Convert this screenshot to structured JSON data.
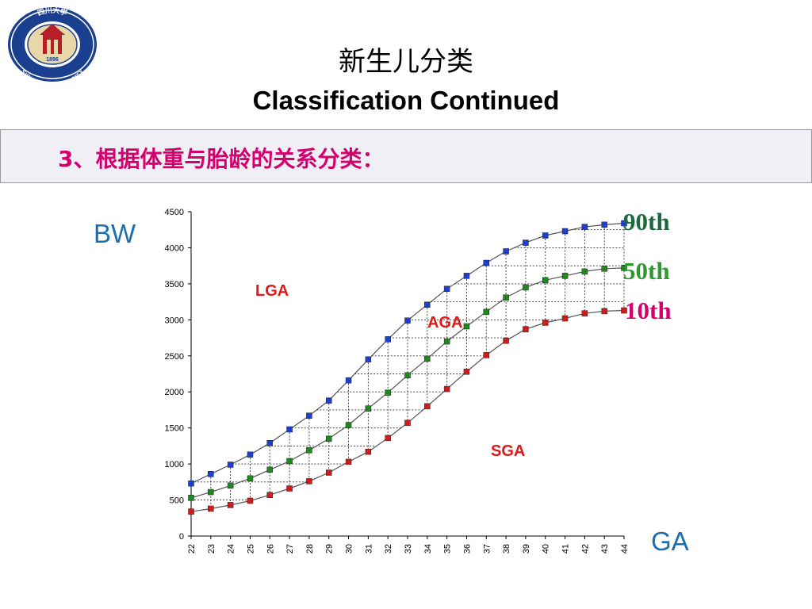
{
  "slide": {
    "title_cn": "新生儿分类",
    "title_en": "Classification Continued",
    "subtitle": "3、根据体重与胎龄的关系分类："
  },
  "logo": {
    "top_text": "四川大学",
    "bottom_text": "SICHUAN UNIVERSITY",
    "year": "1896",
    "color": "#1a3f8f"
  },
  "chart_data": {
    "type": "line",
    "title": "",
    "xlabel": "GA",
    "ylabel": "BW",
    "x": [
      22,
      23,
      24,
      25,
      26,
      27,
      28,
      29,
      30,
      31,
      32,
      33,
      34,
      35,
      36,
      37,
      38,
      39,
      40,
      41,
      42,
      43,
      44
    ],
    "ylim": [
      0,
      4500
    ],
    "yticks": [
      0,
      500,
      1000,
      1500,
      2000,
      2500,
      3000,
      3500,
      4000,
      4500
    ],
    "grid": "dotted grid between curves",
    "series": [
      {
        "name": "90th",
        "color": "#1f3fd0",
        "label_color": "#1a6b3c",
        "values": [
          730,
          860,
          990,
          1130,
          1290,
          1480,
          1670,
          1880,
          2160,
          2450,
          2730,
          2990,
          3210,
          3430,
          3610,
          3790,
          3950,
          4070,
          4170,
          4230,
          4290,
          4320,
          4340
        ]
      },
      {
        "name": "50th",
        "color": "#1e8a1e",
        "label_color": "#2e9a2e",
        "values": [
          530,
          610,
          700,
          800,
          920,
          1040,
          1190,
          1350,
          1540,
          1770,
          1990,
          2230,
          2460,
          2700,
          2910,
          3110,
          3310,
          3450,
          3550,
          3610,
          3670,
          3710,
          3720
        ]
      },
      {
        "name": "10th",
        "color": "#d01c1c",
        "label_color": "#d4006e",
        "values": [
          340,
          380,
          430,
          490,
          570,
          660,
          760,
          880,
          1030,
          1170,
          1360,
          1570,
          1800,
          2040,
          2280,
          2510,
          2710,
          2870,
          2960,
          3020,
          3090,
          3120,
          3130
        ]
      }
    ],
    "annotations": [
      "LGA",
      "AGA",
      "SGA"
    ]
  }
}
